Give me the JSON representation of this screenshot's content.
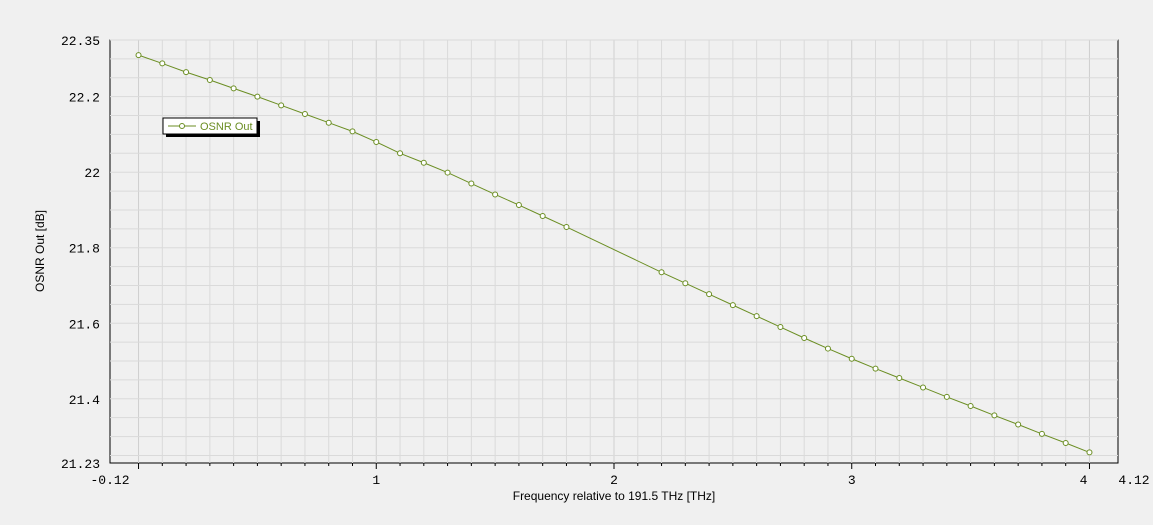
{
  "chart_data": {
    "type": "line",
    "xlabel": "Frequency relative to 191.5 THz [THz]",
    "ylabel": "OSNR Out [dB]",
    "xlim": [
      -0.12,
      4.12
    ],
    "ylim": [
      21.23,
      22.35
    ],
    "x_ticks": [
      "-0.12",
      "1",
      "2",
      "3",
      "4",
      "4.12"
    ],
    "y_ticks": [
      "21.23",
      "21.4",
      "21.6",
      "21.8",
      "22",
      "22.2",
      "22.35"
    ],
    "grid": true,
    "legend_position": "top-left",
    "line_color": "#6b8e23",
    "series": [
      {
        "name": "OSNR Out",
        "x": [
          0,
          0.1,
          0.2,
          0.3,
          0.4,
          0.5,
          0.6,
          0.7,
          0.8,
          0.9,
          1.0,
          1.1,
          1.2,
          1.3,
          1.4,
          1.5,
          1.6,
          1.7,
          1.8,
          2.2,
          2.3,
          2.4,
          2.5,
          2.6,
          2.7,
          2.8,
          2.9,
          3.0,
          3.1,
          3.2,
          3.3,
          3.4,
          3.5,
          3.6,
          3.7,
          3.8,
          3.9,
          4.0
        ],
        "values": [
          22.31,
          22.288,
          22.265,
          22.244,
          22.222,
          22.2,
          22.177,
          22.154,
          22.131,
          22.108,
          22.08,
          22.05,
          22.025,
          21.999,
          21.97,
          21.941,
          21.913,
          21.884,
          21.855,
          21.735,
          21.706,
          21.677,
          21.648,
          21.619,
          21.59,
          21.561,
          21.533,
          21.506,
          21.48,
          21.455,
          21.43,
          21.405,
          21.381,
          21.356,
          21.332,
          21.307,
          21.283,
          21.258
        ]
      }
    ]
  }
}
